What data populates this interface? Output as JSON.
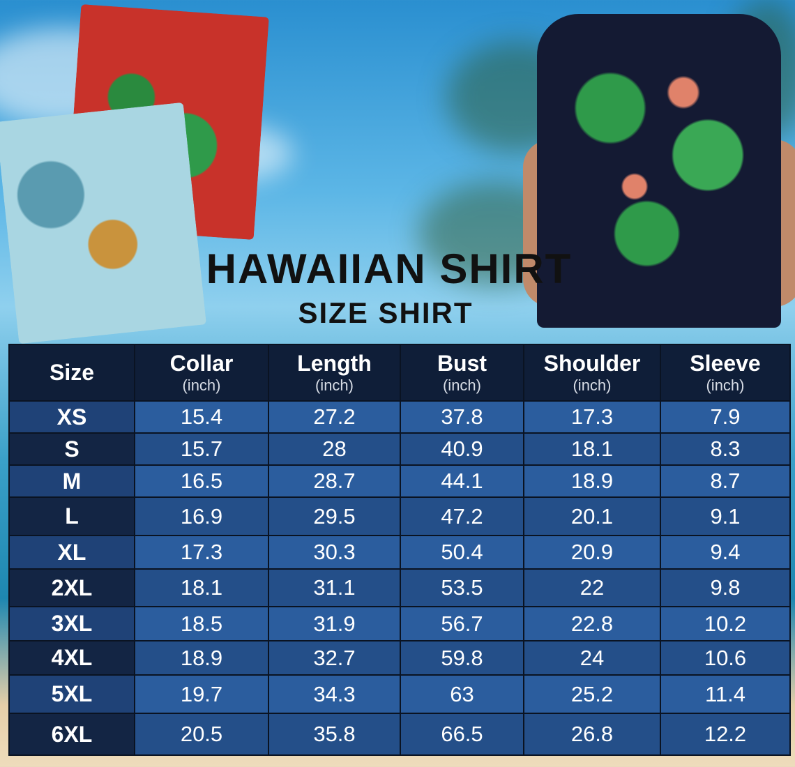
{
  "title": "HAWAIIAN SHIRT",
  "subtitle": "SIZE SHIRT",
  "colors": {
    "header_bg": "#0f1e38",
    "row_light": "#2b5d9e",
    "row_dark": "#244f89",
    "size_col_dark": "#132544"
  },
  "table": {
    "headers": [
      {
        "name": "Size",
        "unit": ""
      },
      {
        "name": "Collar",
        "unit": "(inch)"
      },
      {
        "name": "Length",
        "unit": "(inch)"
      },
      {
        "name": "Bust",
        "unit": "(inch)"
      },
      {
        "name": "Shoulder",
        "unit": "(inch)"
      },
      {
        "name": "Sleeve",
        "unit": "(inch)"
      }
    ],
    "rows": [
      [
        "XS",
        "15.4",
        "27.2",
        "37.8",
        "17.3",
        "7.9"
      ],
      [
        "S",
        "15.7",
        "28",
        "40.9",
        "18.1",
        "8.3"
      ],
      [
        "M",
        "16.5",
        "28.7",
        "44.1",
        "18.9",
        "8.7"
      ],
      [
        "L",
        "16.9",
        "29.5",
        "47.2",
        "20.1",
        "9.1"
      ],
      [
        "XL",
        "17.3",
        "30.3",
        "50.4",
        "20.9",
        "9.4"
      ],
      [
        "2XL",
        "18.1",
        "31.1",
        "53.5",
        "22",
        "9.8"
      ],
      [
        "3XL",
        "18.5",
        "31.9",
        "56.7",
        "22.8",
        "10.2"
      ],
      [
        "4XL",
        "18.9",
        "32.7",
        "59.8",
        "24",
        "10.6"
      ],
      [
        "5XL",
        "19.7",
        "34.3",
        "63",
        "25.2",
        "11.4"
      ],
      [
        "6XL",
        "20.5",
        "35.8",
        "66.5",
        "26.8",
        "12.2"
      ]
    ]
  }
}
